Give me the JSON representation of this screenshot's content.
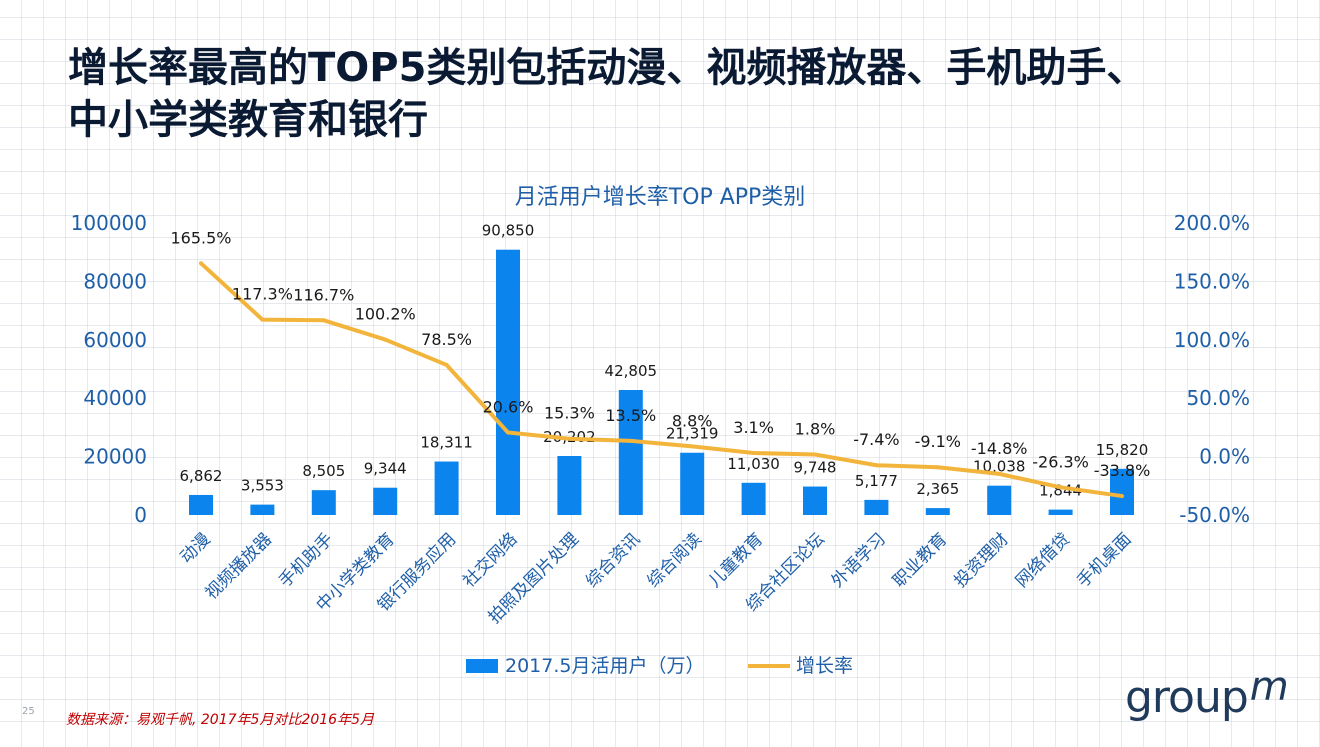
{
  "slide": {
    "title_line1": "增长率最高的TOP5类别包括动漫、视频播放器、手机助手、",
    "title_line2": "中小学类教育和银行",
    "source": "数据来源：易观千帆, 2017年5月对比2016年5月",
    "page_number": "25",
    "logo_text": "group",
    "logo_mark": "m"
  },
  "chart_data": {
    "type": "bar",
    "title": "月活用户增长率TOP APP类别",
    "categories": [
      "动漫",
      "视频播放器",
      "手机助手",
      "中小学类教育",
      "银行服务应用",
      "社交网络",
      "拍照及图片处理",
      "综合资讯",
      "综合阅读",
      "儿童教育",
      "综合社区论坛",
      "外语学习",
      "职业教育",
      "投资理财",
      "网络借贷",
      "手机桌面"
    ],
    "series": [
      {
        "name": "2017.5月活用户（万）",
        "type": "bar",
        "axis": "left",
        "color": "#0b84ee",
        "values": [
          6862,
          3553,
          8505,
          9344,
          18311,
          90850,
          20202,
          42805,
          21319,
          11030,
          9748,
          5177,
          2365,
          10038,
          1844,
          15820
        ],
        "labels": [
          "6,862",
          "3,553",
          "8,505",
          "9,344",
          "18,311",
          "90,850",
          "20,202",
          "42,805",
          "21,319",
          "11,030",
          "9,748",
          "5,177",
          "2,365",
          "10,038",
          "1,844",
          "15,820"
        ]
      },
      {
        "name": "增长率",
        "type": "line",
        "axis": "right",
        "color": "#f2b43a",
        "values": [
          165.5,
          117.3,
          116.7,
          100.2,
          78.5,
          20.6,
          15.3,
          13.5,
          8.8,
          3.1,
          1.8,
          -7.4,
          -9.1,
          -14.8,
          -26.3,
          -33.8
        ],
        "labels": [
          "165.5%",
          "117.3%",
          "116.7%",
          "100.2%",
          "78.5%",
          "20.6%",
          "15.3%",
          "13.5%",
          "8.8%",
          "3.1%",
          "1.8%",
          "-7.4%",
          "-9.1%",
          "-14.8%",
          "-26.3%",
          "-33.8%"
        ]
      }
    ],
    "y_left": {
      "min": 0,
      "max": 100000,
      "ticks": [
        "0",
        "20000",
        "40000",
        "60000",
        "80000",
        "100000"
      ]
    },
    "y_right": {
      "min": -50,
      "max": 200,
      "ticks": [
        "-50.0%",
        "0.0%",
        "50.0%",
        "100.0%",
        "150.0%",
        "200.0%"
      ]
    },
    "legend_position": "bottom",
    "grid": false,
    "colors": {
      "axis_text": "#1f5fa8",
      "label_text": "#1a1a1a",
      "title_text": "#1f5fa8"
    }
  }
}
